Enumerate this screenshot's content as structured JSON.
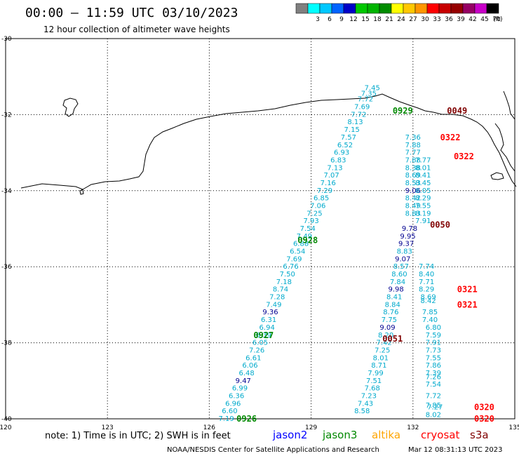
{
  "header": {
    "title": "00:00 – 11:59 UTC 03/10/2023",
    "subtitle": "12 hour collection of altimeter wave heights"
  },
  "legend": {
    "unit": "(ft)",
    "entries": [
      {
        "label": "",
        "color": "#808080"
      },
      {
        "label": "3",
        "color": "#00ffff"
      },
      {
        "label": "6",
        "color": "#00c8ff"
      },
      {
        "label": "9",
        "color": "#0064ff"
      },
      {
        "label": "12",
        "color": "#0000c8"
      },
      {
        "label": "15",
        "color": "#00c800"
      },
      {
        "label": "18",
        "color": "#00b400"
      },
      {
        "label": "21",
        "color": "#008c00"
      },
      {
        "label": "24",
        "color": "#ffff00"
      },
      {
        "label": "27",
        "color": "#ffc800"
      },
      {
        "label": "30",
        "color": "#ff9600"
      },
      {
        "label": "33",
        "color": "#ff0000"
      },
      {
        "label": "36",
        "color": "#c80000"
      },
      {
        "label": "39",
        "color": "#960000"
      },
      {
        "label": "42",
        "color": "#960064"
      },
      {
        "label": "45",
        "color": "#c800c8"
      },
      {
        "label": "70",
        "color": "#000000"
      }
    ]
  },
  "axes": {
    "lat_labels": [
      "-30",
      "-32",
      "-34",
      "-36",
      "-38",
      "-40"
    ],
    "lon_labels": [
      "120",
      "123",
      "126",
      "129",
      "132",
      "135"
    ]
  },
  "colors": {
    "light": "#00aacc",
    "dark": "#000090",
    "jason2": "#0000ff",
    "jason3": "#008800",
    "altika": "#ffa500",
    "cryosat": "#ff0000",
    "s3a": "#800000"
  },
  "tracks": [
    {
      "time": "0926",
      "time_color": "jason3",
      "points": [
        [
          126.5,
          -40.0,
          "7.19",
          "light"
        ],
        [
          126.6,
          -39.8,
          "6.60",
          "light"
        ],
        [
          126.7,
          -39.6,
          "6.96",
          "light"
        ],
        [
          126.8,
          -39.4,
          "6.36",
          "light"
        ],
        [
          126.9,
          -39.2,
          "6.99",
          "light"
        ],
        [
          127.0,
          -39.0,
          "9.47",
          "dark"
        ],
        [
          127.1,
          -38.8,
          "6.48",
          "light"
        ],
        [
          127.2,
          -38.6,
          "6.06",
          "light"
        ],
        [
          127.3,
          -38.4,
          "6.61",
          "light"
        ],
        [
          127.4,
          -38.2,
          "7.26",
          "light"
        ],
        [
          127.5,
          -38.0,
          "6.05",
          "light"
        ],
        [
          127.6,
          -37.8,
          "6.39",
          "light"
        ],
        [
          127.7,
          -37.6,
          "6.94",
          "light"
        ],
        [
          127.75,
          -37.4,
          "6.31",
          "light"
        ],
        [
          127.8,
          -37.2,
          "9.36",
          "dark"
        ],
        [
          127.9,
          -37.0,
          "7.49",
          "light"
        ],
        [
          128.0,
          -36.8,
          "7.28",
          "light"
        ],
        [
          128.1,
          -36.6,
          "8.74",
          "light"
        ],
        [
          128.2,
          -36.4,
          "7.18",
          "light"
        ],
        [
          128.3,
          -36.2,
          "7.50",
          "light"
        ],
        [
          128.4,
          -36.0,
          "6.76",
          "light"
        ],
        [
          128.5,
          -35.8,
          "7.69",
          "light"
        ],
        [
          128.6,
          -35.6,
          "6.54",
          "light"
        ],
        [
          128.7,
          -35.4,
          "6.88",
          "light"
        ],
        [
          128.8,
          -35.2,
          "7.49",
          "light"
        ],
        [
          128.9,
          -35.0,
          "7.54",
          "light"
        ],
        [
          129.0,
          -34.8,
          "7.93",
          "light"
        ],
        [
          129.1,
          -34.6,
          "7.25",
          "light"
        ],
        [
          129.2,
          -34.4,
          "7.06",
          "light"
        ],
        [
          129.3,
          -34.2,
          "6.85",
          "light"
        ],
        [
          129.4,
          -34.0,
          "7.29",
          "light"
        ],
        [
          129.5,
          -33.8,
          "7.16",
          "light"
        ],
        [
          129.6,
          -33.6,
          "7.07",
          "light"
        ],
        [
          129.7,
          -33.4,
          "7.13",
          "light"
        ],
        [
          129.8,
          -33.2,
          "6.83",
          "light"
        ],
        [
          129.9,
          -33.0,
          "6.93",
          "light"
        ],
        [
          130.0,
          -32.8,
          "6.52",
          "light"
        ],
        [
          130.1,
          -32.6,
          "7.57",
          "light"
        ],
        [
          130.2,
          -32.4,
          "7.15",
          "light"
        ],
        [
          130.3,
          -32.2,
          "8.13",
          "light"
        ],
        [
          130.4,
          -32.0,
          "7.72",
          "light"
        ],
        [
          130.5,
          -31.8,
          "7.69",
          "light"
        ],
        [
          130.6,
          -31.6,
          "7.72",
          "light"
        ],
        [
          130.7,
          -31.45,
          "7.35",
          "light"
        ],
        [
          130.8,
          -31.3,
          "7.45",
          "light"
        ]
      ]
    },
    {
      "time": "0927",
      "time_color": "jason3",
      "points": []
    },
    {
      "time": "0928",
      "time_color": "jason3",
      "points": []
    },
    {
      "time": "0929",
      "time_color": "jason3",
      "points": []
    },
    {
      "time": "0051",
      "time_color": "s3a",
      "points": [
        [
          130.5,
          -39.8,
          "8.58",
          "light"
        ],
        [
          130.6,
          -39.6,
          "7.43",
          "light"
        ],
        [
          130.7,
          -39.4,
          "7.23",
          "light"
        ],
        [
          130.8,
          -39.2,
          "7.68",
          "light"
        ],
        [
          130.85,
          -39.0,
          "7.51",
          "light"
        ],
        [
          130.9,
          -38.8,
          "7.99",
          "light"
        ],
        [
          131.0,
          -38.6,
          "8.71",
          "light"
        ],
        [
          131.05,
          -38.4,
          "8.01",
          "light"
        ],
        [
          131.1,
          -38.2,
          "7.25",
          "light"
        ],
        [
          131.15,
          -38.0,
          "7.42",
          "light"
        ],
        [
          131.2,
          -37.8,
          "8.20",
          "light"
        ],
        [
          131.25,
          -37.6,
          "9.09",
          "dark"
        ],
        [
          131.3,
          -37.4,
          "7.75",
          "light"
        ],
        [
          131.35,
          -37.2,
          "8.76",
          "light"
        ],
        [
          131.4,
          -37.0,
          "8.84",
          "light"
        ],
        [
          131.45,
          -36.8,
          "8.41",
          "light"
        ],
        [
          131.5,
          -36.6,
          "9.98",
          "dark"
        ],
        [
          131.55,
          -36.4,
          "7.84",
          "light"
        ],
        [
          131.6,
          -36.2,
          "8.60",
          "light"
        ],
        [
          131.65,
          -36.0,
          "8.57",
          "light"
        ],
        [
          131.7,
          -35.8,
          "9.07",
          "dark"
        ],
        [
          131.75,
          -35.6,
          "8.83",
          "light"
        ],
        [
          131.8,
          -35.4,
          "9.37",
          "dark"
        ],
        [
          131.85,
          -35.2,
          "9.95",
          "dark"
        ],
        [
          131.9,
          -35.0,
          "9.78",
          "dark"
        ]
      ]
    },
    {
      "time": "0050",
      "time_color": "s3a",
      "points": []
    },
    {
      "time": "0049",
      "time_color": "s3a",
      "points": [
        [
          132.0,
          -34.6,
          "8.83",
          "light"
        ],
        [
          132.0,
          -34.4,
          "8.49",
          "light"
        ],
        [
          132.0,
          -34.2,
          "8.42",
          "light"
        ],
        [
          132.0,
          -34.0,
          "9.06",
          "dark"
        ],
        [
          132.0,
          -33.8,
          "8.53",
          "light"
        ],
        [
          132.0,
          -33.6,
          "8.69",
          "light"
        ],
        [
          132.0,
          -33.4,
          "8.38",
          "light"
        ],
        [
          132.0,
          -33.2,
          "7.88",
          "light"
        ],
        [
          132.0,
          -33.0,
          "7.77",
          "light"
        ],
        [
          132.0,
          -32.8,
          "7.88",
          "light"
        ],
        [
          132.0,
          -32.6,
          "7.36",
          "light"
        ]
      ]
    },
    {
      "time": "0322",
      "time_color": "cryosat",
      "points": [
        [
          132.3,
          -34.8,
          "7.91",
          "light"
        ],
        [
          132.3,
          -34.6,
          "8.19",
          "light"
        ],
        [
          132.3,
          -34.4,
          "7.55",
          "light"
        ],
        [
          132.3,
          -34.2,
          "8.29",
          "light"
        ],
        [
          132.3,
          -34.0,
          "8.05",
          "light"
        ],
        [
          132.3,
          -33.8,
          "8.45",
          "light"
        ],
        [
          132.3,
          -33.6,
          "8.41",
          "light"
        ],
        [
          132.3,
          -33.4,
          "8.01",
          "light"
        ],
        [
          132.3,
          -33.2,
          "7.77",
          "light"
        ]
      ]
    },
    {
      "time": "0322",
      "time_color": "cryosat",
      "points": []
    },
    {
      "time": "0321",
      "time_color": "cryosat",
      "points": [
        [
          132.5,
          -37.4,
          "7.40",
          "light"
        ],
        [
          132.5,
          -37.2,
          "7.85",
          "light"
        ],
        [
          132.45,
          -36.9,
          "8.42",
          "light"
        ],
        [
          132.45,
          -36.8,
          "8.69",
          "light"
        ],
        [
          132.4,
          -36.6,
          "8.29",
          "light"
        ],
        [
          132.4,
          -36.4,
          "7.71",
          "light"
        ],
        [
          132.4,
          -36.2,
          "8.40",
          "light"
        ],
        [
          132.4,
          -36.0,
          "7.74",
          "light"
        ]
      ]
    },
    {
      "time": "0321",
      "time_color": "cryosat",
      "points": []
    },
    {
      "time": "0320",
      "time_color": "cryosat",
      "points": [
        [
          132.6,
          -39.9,
          "8.02",
          "light"
        ],
        [
          132.65,
          -39.7,
          "7.27",
          "light"
        ],
        [
          132.6,
          -39.65,
          "7.85",
          "light"
        ],
        [
          132.6,
          -39.4,
          "7.72",
          "light"
        ],
        [
          132.6,
          -39.1,
          "7.54",
          "light"
        ],
        [
          132.6,
          -38.9,
          "7.26",
          "light"
        ],
        [
          132.6,
          -38.8,
          "7.39",
          "light"
        ],
        [
          132.6,
          -38.6,
          "7.86",
          "light"
        ],
        [
          132.6,
          -38.4,
          "7.55",
          "light"
        ],
        [
          132.6,
          -38.2,
          "7.73",
          "light"
        ],
        [
          132.6,
          -38.0,
          "7.91",
          "light"
        ],
        [
          132.6,
          -37.8,
          "7.59",
          "light"
        ],
        [
          132.6,
          -37.6,
          "6.80",
          "light"
        ]
      ]
    },
    {
      "time": "0320",
      "time_color": "cryosat",
      "points": []
    }
  ],
  "time_positions": [
    [
      127.1,
      -40.0
    ],
    [
      127.6,
      -37.8
    ],
    [
      128.9,
      -35.3
    ],
    [
      131.7,
      -31.9
    ],
    [
      131.4,
      -37.9
    ],
    [
      132.8,
      -34.9
    ],
    [
      133.3,
      -31.9
    ],
    [
      133.1,
      -32.6
    ],
    [
      133.5,
      -33.1
    ],
    [
      133.6,
      -36.6
    ],
    [
      133.6,
      -37.0
    ],
    [
      134.1,
      -39.7
    ],
    [
      134.1,
      -40.0
    ]
  ],
  "footer": {
    "note": "note: 1) Time is in UTC; 2) SWH is in feet",
    "satellites": [
      {
        "name": "jason2",
        "color": "jason2"
      },
      {
        "name": "jason3",
        "color": "jason3"
      },
      {
        "name": "altika",
        "color": "altika"
      },
      {
        "name": "cryosat",
        "color": "cryosat"
      },
      {
        "name": "s3a",
        "color": "s3a"
      }
    ],
    "credit": "NOAA/NESDIS Center for Satellite Applications and Research",
    "timestamp": "Mar 12 08:31:13 UTC 2023"
  }
}
